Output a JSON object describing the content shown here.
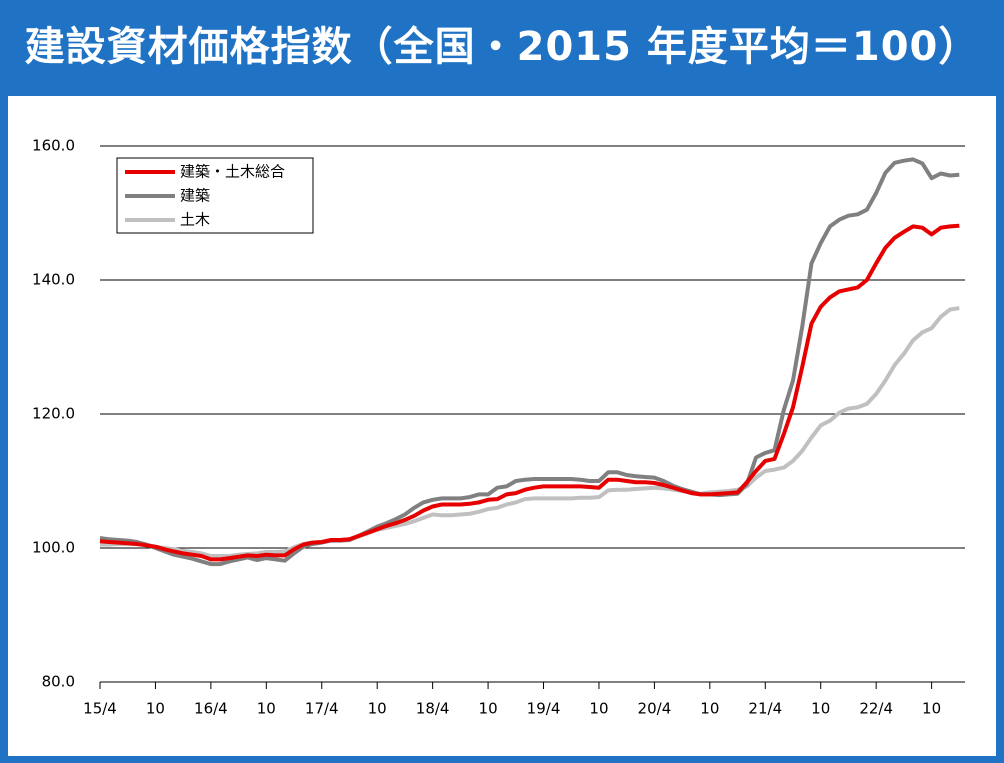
{
  "chart_data": {
    "type": "line",
    "title": "建設資材価格指数（全国・2015 年度平均＝100）",
    "categories": [
      "15/4",
      null,
      null,
      null,
      null,
      null,
      "10",
      null,
      null,
      null,
      null,
      null,
      "16/4",
      null,
      null,
      null,
      null,
      null,
      "10",
      null,
      null,
      null,
      null,
      null,
      "17/4",
      null,
      null,
      null,
      null,
      null,
      "10",
      null,
      null,
      null,
      null,
      null,
      "18/4",
      null,
      null,
      null,
      null,
      null,
      "10",
      null,
      null,
      null,
      null,
      null,
      "19/4",
      null,
      null,
      null,
      null,
      null,
      "10",
      null,
      null,
      null,
      null,
      null,
      "20/4",
      null,
      null,
      null,
      null,
      null,
      "10",
      null,
      null,
      null,
      null,
      null,
      "21/4",
      null,
      null,
      null,
      null,
      null,
      "10",
      null,
      null,
      null,
      null,
      null,
      "22/4",
      null,
      null,
      null,
      null,
      null,
      "10",
      null,
      null,
      null
    ],
    "series": [
      {
        "name": "建築・土木総合",
        "color": "#e60000",
        "width": 4,
        "values": [
          101.0,
          100.9,
          100.8,
          100.7,
          100.6,
          100.4,
          100.2,
          99.8,
          99.5,
          99.2,
          99.0,
          98.8,
          98.3,
          98.3,
          98.5,
          98.7,
          98.9,
          98.8,
          99.0,
          98.9,
          98.9,
          99.8,
          100.5,
          100.8,
          100.9,
          101.2,
          101.2,
          101.3,
          101.8,
          102.3,
          102.8,
          103.3,
          103.7,
          104.2,
          104.8,
          105.6,
          106.2,
          106.5,
          106.5,
          106.5,
          106.6,
          106.8,
          107.2,
          107.3,
          108.0,
          108.2,
          108.7,
          109.0,
          109.2,
          109.2,
          109.2,
          109.2,
          109.2,
          109.1,
          109.0,
          110.2,
          110.2,
          110.0,
          109.8,
          109.8,
          109.7,
          109.4,
          109.0,
          108.6,
          108.2,
          108.0,
          108.0,
          108.1,
          108.2,
          108.3,
          109.8,
          111.5,
          113.0,
          113.3,
          117.0,
          121.0,
          127.0,
          133.5,
          136.0,
          137.4,
          138.3,
          138.6,
          138.9,
          140.0,
          142.5,
          144.8,
          146.3,
          147.2,
          148.0,
          147.8,
          146.8,
          147.8,
          148.0,
          148.1
        ]
      },
      {
        "name": "建築",
        "color": "#808080",
        "width": 4,
        "values": [
          101.5,
          101.3,
          101.2,
          101.1,
          100.9,
          100.5,
          100.0,
          99.5,
          99.0,
          98.7,
          98.4,
          98.0,
          97.6,
          97.6,
          98.0,
          98.3,
          98.6,
          98.2,
          98.5,
          98.3,
          98.1,
          99.2,
          100.2,
          100.6,
          100.8,
          101.1,
          101.1,
          101.2,
          101.8,
          102.5,
          103.2,
          103.7,
          104.3,
          105.0,
          106.0,
          106.8,
          107.2,
          107.4,
          107.4,
          107.4,
          107.6,
          108.0,
          108.0,
          109.0,
          109.2,
          110.0,
          110.2,
          110.3,
          110.3,
          110.3,
          110.3,
          110.3,
          110.2,
          110.0,
          110.0,
          111.3,
          111.3,
          110.9,
          110.7,
          110.6,
          110.5,
          110.0,
          109.3,
          108.8,
          108.4,
          108.0,
          108.0,
          107.9,
          108.0,
          108.1,
          109.5,
          113.5,
          114.2,
          114.6,
          120.6,
          125.0,
          133.0,
          142.5,
          145.5,
          148.0,
          149.0,
          149.6,
          149.8,
          150.5,
          153.0,
          156.0,
          157.5,
          157.8,
          158.0,
          157.4,
          155.2,
          155.9,
          155.6,
          155.7
        ]
      },
      {
        "name": "土木",
        "color": "#c0c0c0",
        "width": 4,
        "values": [
          100.5,
          100.5,
          100.6,
          100.6,
          100.6,
          100.5,
          100.2,
          100.0,
          99.8,
          99.6,
          99.4,
          99.2,
          98.8,
          98.8,
          98.8,
          99.0,
          99.1,
          99.2,
          99.4,
          99.4,
          99.5,
          100.1,
          100.6,
          100.8,
          100.9,
          101.1,
          101.2,
          101.3,
          101.7,
          102.2,
          102.7,
          103.0,
          103.3,
          103.6,
          104.0,
          104.5,
          105.0,
          104.9,
          104.9,
          105.0,
          105.1,
          105.4,
          105.8,
          106.0,
          106.5,
          106.8,
          107.3,
          107.4,
          107.4,
          107.4,
          107.4,
          107.4,
          107.5,
          107.5,
          107.6,
          108.6,
          108.7,
          108.7,
          108.8,
          108.9,
          109.0,
          108.9,
          108.7,
          108.5,
          108.3,
          108.1,
          108.3,
          108.4,
          108.5,
          108.7,
          109.2,
          110.5,
          111.5,
          111.7,
          112.0,
          113.0,
          114.5,
          116.5,
          118.3,
          119.0,
          120.2,
          120.8,
          121.0,
          121.5,
          123.0,
          125.0,
          127.3,
          129.0,
          131.0,
          132.2,
          132.8,
          134.5,
          135.6,
          135.8
        ]
      }
    ],
    "ylim": [
      80,
      160
    ],
    "yticks": [
      {
        "value": 80,
        "label": "80.0"
      },
      {
        "value": 100,
        "label": "100.0"
      },
      {
        "value": 120,
        "label": "120.0"
      },
      {
        "value": 140,
        "label": "140.0"
      },
      {
        "value": 160,
        "label": "160.0"
      }
    ],
    "grid": true,
    "legend": "top-left"
  }
}
